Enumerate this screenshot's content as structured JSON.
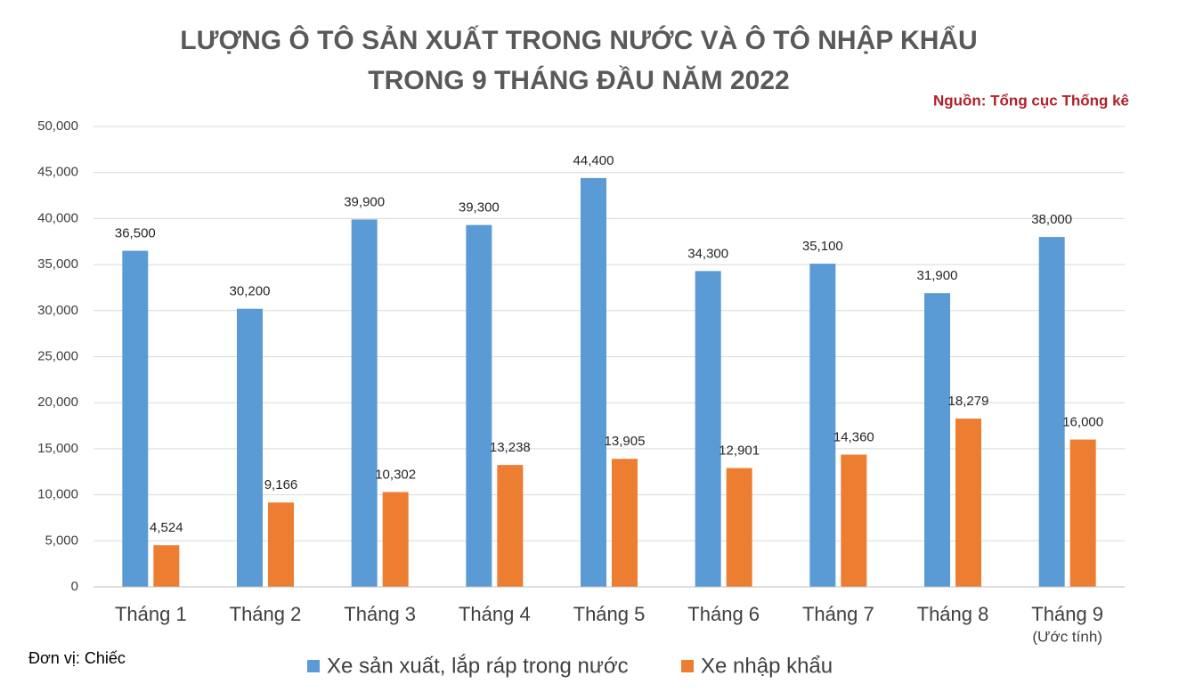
{
  "chart_data": {
    "type": "bar",
    "title": [
      "LƯỢNG Ô TÔ SẢN XUẤT TRONG NƯỚC VÀ Ô TÔ NHẬP KHẨU",
      "TRONG 9 THÁNG ĐẦU NĂM 2022"
    ],
    "source": "Nguồn: Tổng cục Thống kê",
    "unit_note": "Đơn vị: Chiếc",
    "categories": [
      "Tháng 1",
      "Tháng 2",
      "Tháng 3",
      "Tháng 4",
      "Tháng 5",
      "Tháng 6",
      "Tháng 7",
      "Tháng 8",
      "Tháng 9"
    ],
    "category_note": "(Ước tính)",
    "series": [
      {
        "name": "Xe sản xuất, lắp ráp trong nước",
        "color": "#5b9bd5",
        "values": [
          36500,
          30200,
          39900,
          39300,
          44400,
          34300,
          35100,
          31900,
          38000
        ],
        "value_labels": [
          "36,500",
          "30,200",
          "39,900",
          "39,300",
          "44,400",
          "34,300",
          "35,100",
          "31,900",
          "38,000"
        ]
      },
      {
        "name": "Xe nhập khẩu",
        "color": "#ed7d31",
        "values": [
          4524,
          9166,
          10302,
          13238,
          13905,
          12901,
          14360,
          18279,
          16000
        ],
        "value_labels": [
          "4,524",
          "9,166",
          "10,302",
          "13,238",
          "13,905",
          "12,901",
          "14,360",
          "18,279",
          "16,000"
        ]
      }
    ],
    "ylim": [
      0,
      50000
    ],
    "yticks": [
      0,
      {
        "value": 5000,
        "label": "5,000"
      },
      {
        "value": 10000,
        "label": "10,000"
      },
      {
        "value": 15000,
        "label": "15,000"
      },
      {
        "value": 20000,
        "label": "20,000"
      },
      {
        "value": 25000,
        "label": "25,000"
      },
      {
        "value": 30000,
        "label": "30,000"
      },
      {
        "value": 35000,
        "label": "35,000"
      },
      {
        "value": 40000,
        "label": "40,000"
      },
      {
        "value": 45000,
        "label": "45,000"
      },
      {
        "value": 50000,
        "label": "50,000"
      }
    ],
    "grid": true
  }
}
